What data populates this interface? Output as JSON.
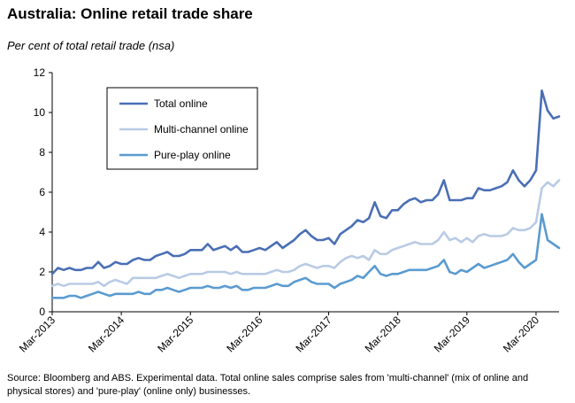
{
  "colors": {
    "total": "#4a6fb5",
    "multi": "#b9cbe4",
    "pure": "#5b9bd0",
    "axis": "#000000",
    "grid": "#d0d0d0"
  },
  "chart_data": {
    "type": "line",
    "title": "Australia: Online retail trade share",
    "ylabel": "Per cent of total retail trade (nsa)",
    "xlabel": "",
    "ylim": [
      0,
      12
    ],
    "yticks": [
      0,
      2,
      4,
      6,
      8,
      10,
      12
    ],
    "xticks": [
      "Mar-2013",
      "Mar-2014",
      "Mar-2015",
      "Mar-2016",
      "Mar-2017",
      "Mar-2018",
      "Mar-2019",
      "Mar-2020"
    ],
    "x_start": "Mar-2013",
    "x_end": "Jun-2020",
    "frequency": "monthly",
    "grid": false,
    "legend_position": "top-left",
    "series": [
      {
        "name": "Total online",
        "key": "total",
        "values": [
          1.9,
          2.2,
          2.1,
          2.2,
          2.1,
          2.1,
          2.2,
          2.2,
          2.5,
          2.2,
          2.3,
          2.5,
          2.4,
          2.4,
          2.6,
          2.7,
          2.6,
          2.6,
          2.8,
          2.9,
          3.0,
          2.8,
          2.8,
          2.9,
          3.1,
          3.1,
          3.1,
          3.4,
          3.1,
          3.2,
          3.3,
          3.1,
          3.3,
          3.0,
          3.0,
          3.1,
          3.2,
          3.1,
          3.3,
          3.5,
          3.2,
          3.4,
          3.6,
          3.9,
          4.1,
          3.8,
          3.6,
          3.6,
          3.7,
          3.4,
          3.9,
          4.1,
          4.3,
          4.6,
          4.5,
          4.7,
          5.5,
          4.8,
          4.7,
          5.1,
          5.1,
          5.4,
          5.6,
          5.7,
          5.5,
          5.6,
          5.6,
          5.9,
          6.6,
          5.6,
          5.6,
          5.6,
          5.7,
          5.7,
          6.2,
          6.1,
          6.1,
          6.2,
          6.3,
          6.5,
          7.1,
          6.6,
          6.3,
          6.6,
          7.1,
          11.1,
          10.1,
          9.7,
          9.8
        ]
      },
      {
        "name": "Multi-channel online",
        "key": "multi",
        "values": [
          1.3,
          1.4,
          1.3,
          1.4,
          1.4,
          1.4,
          1.4,
          1.4,
          1.5,
          1.3,
          1.5,
          1.6,
          1.5,
          1.4,
          1.7,
          1.7,
          1.7,
          1.7,
          1.7,
          1.8,
          1.9,
          1.8,
          1.7,
          1.8,
          1.9,
          1.9,
          1.9,
          2.0,
          2.0,
          2.0,
          2.0,
          1.9,
          2.0,
          1.9,
          1.9,
          1.9,
          1.9,
          1.9,
          2.0,
          2.1,
          2.0,
          2.0,
          2.1,
          2.3,
          2.4,
          2.3,
          2.2,
          2.3,
          2.3,
          2.2,
          2.5,
          2.7,
          2.8,
          2.7,
          2.8,
          2.6,
          3.1,
          2.9,
          2.9,
          3.1,
          3.2,
          3.3,
          3.4,
          3.5,
          3.4,
          3.4,
          3.4,
          3.6,
          4.0,
          3.6,
          3.7,
          3.5,
          3.7,
          3.5,
          3.8,
          3.9,
          3.8,
          3.8,
          3.8,
          3.9,
          4.2,
          4.1,
          4.1,
          4.2,
          4.5,
          6.2,
          6.5,
          6.3,
          6.6
        ]
      },
      {
        "name": "Pure-play online",
        "key": "pure",
        "values": [
          0.7,
          0.7,
          0.7,
          0.8,
          0.8,
          0.7,
          0.8,
          0.9,
          1.0,
          0.9,
          0.8,
          0.9,
          0.9,
          0.9,
          0.9,
          1.0,
          0.9,
          0.9,
          1.1,
          1.1,
          1.2,
          1.1,
          1.0,
          1.1,
          1.2,
          1.2,
          1.2,
          1.3,
          1.2,
          1.2,
          1.3,
          1.2,
          1.3,
          1.1,
          1.1,
          1.2,
          1.2,
          1.2,
          1.3,
          1.4,
          1.3,
          1.3,
          1.5,
          1.6,
          1.7,
          1.5,
          1.4,
          1.4,
          1.4,
          1.2,
          1.4,
          1.5,
          1.6,
          1.8,
          1.7,
          2.0,
          2.3,
          1.9,
          1.8,
          1.9,
          1.9,
          2.0,
          2.1,
          2.1,
          2.1,
          2.1,
          2.2,
          2.3,
          2.6,
          2.0,
          1.9,
          2.1,
          2.0,
          2.2,
          2.4,
          2.2,
          2.3,
          2.4,
          2.5,
          2.6,
          2.9,
          2.5,
          2.2,
          2.4,
          2.6,
          4.9,
          3.6,
          3.4,
          3.2
        ]
      }
    ]
  },
  "source_text": "Source: Bloomberg and ABS.  Experimental data.  Total online sales comprise sales from 'multi-channel' (mix of online and physical stores) and 'pure-play' (online only) businesses."
}
